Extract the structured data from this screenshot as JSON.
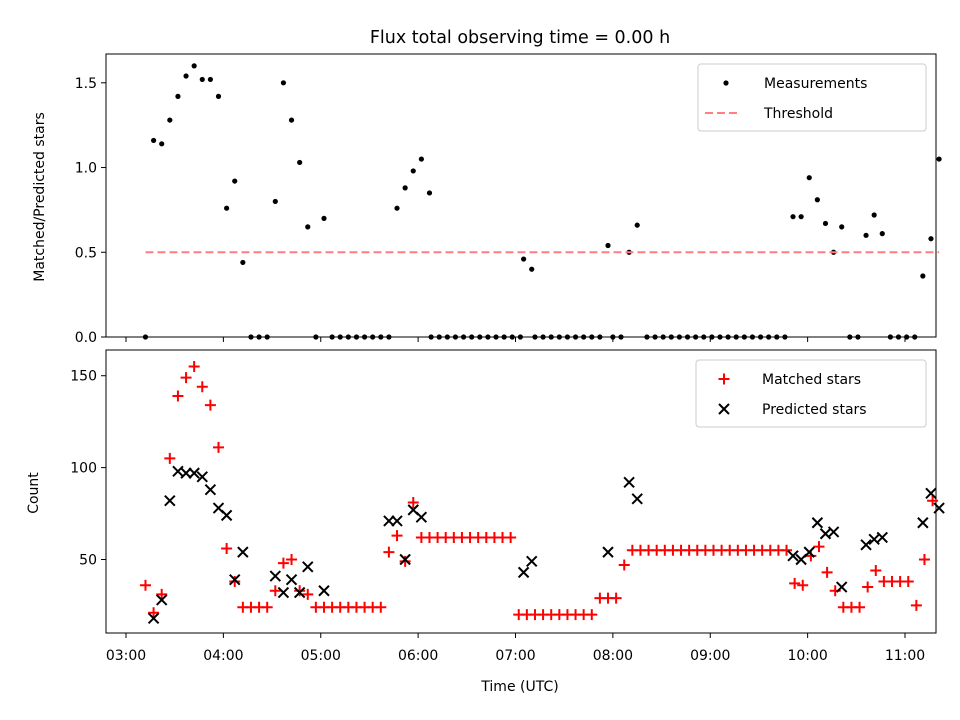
{
  "figure": {
    "title": "Flux total observing time = 0.00 h",
    "xlabel": "Time (UTC)",
    "x_ticks": [
      "03:00",
      "04:00",
      "05:00",
      "06:00",
      "07:00",
      "08:00",
      "09:00",
      "10:00",
      "11:00"
    ]
  },
  "colors": {
    "measurement": "#000000",
    "threshold": "#ff7f7f",
    "matched": "#ff0000",
    "predicted": "#000000"
  },
  "chart_data": [
    {
      "type": "scatter",
      "ylabel": "Matched/Predicted stars",
      "xlim": [
        "03:00",
        "11:00"
      ],
      "ylim": [
        0,
        1.67
      ],
      "y_ticks": [
        "0.0",
        "0.5",
        "1.0",
        "1.5"
      ],
      "y_tick_values": [
        0,
        0.5,
        1.0,
        1.5
      ],
      "legend": {
        "placement": "top-right",
        "entries": [
          "Measurements",
          "Threshold"
        ]
      },
      "series": [
        {
          "name": "Measurements",
          "marker": "dot",
          "points": [
            [
              "03:12",
              0
            ],
            [
              "03:17",
              1.16
            ],
            [
              "03:22",
              1.14
            ],
            [
              "03:27",
              1.28
            ],
            [
              "03:32",
              1.42
            ],
            [
              "03:37",
              1.54
            ],
            [
              "03:42",
              1.6
            ],
            [
              "03:47",
              1.52
            ],
            [
              "03:52",
              1.52
            ],
            [
              "03:57",
              1.42
            ],
            [
              "04:02",
              0.76
            ],
            [
              "04:07",
              0.92
            ],
            [
              "04:12",
              0.44
            ],
            [
              "04:17",
              0
            ],
            [
              "04:22",
              0
            ],
            [
              "04:27",
              0
            ],
            [
              "04:32",
              0.8
            ],
            [
              "04:37",
              1.5
            ],
            [
              "04:42",
              1.28
            ],
            [
              "04:47",
              1.03
            ],
            [
              "04:52",
              0.65
            ],
            [
              "04:57",
              0
            ],
            [
              "05:02",
              0.7
            ],
            [
              "05:07",
              0
            ],
            [
              "05:12",
              0
            ],
            [
              "05:17",
              0
            ],
            [
              "05:22",
              0
            ],
            [
              "05:27",
              0
            ],
            [
              "05:32",
              0
            ],
            [
              "05:37",
              0
            ],
            [
              "05:42",
              0
            ],
            [
              "05:47",
              0.76
            ],
            [
              "05:52",
              0.88
            ],
            [
              "05:57",
              0.98
            ],
            [
              "06:02",
              1.05
            ],
            [
              "06:07",
              0.85
            ],
            [
              "06:08",
              0
            ],
            [
              "06:13",
              0
            ],
            [
              "06:18",
              0
            ],
            [
              "06:23",
              0
            ],
            [
              "06:28",
              0
            ],
            [
              "06:33",
              0
            ],
            [
              "06:38",
              0
            ],
            [
              "06:43",
              0
            ],
            [
              "06:48",
              0
            ],
            [
              "06:53",
              0
            ],
            [
              "06:58",
              0
            ],
            [
              "07:03",
              0
            ],
            [
              "07:05",
              0.46
            ],
            [
              "07:10",
              0.4
            ],
            [
              "07:12",
              0
            ],
            [
              "07:17",
              0
            ],
            [
              "07:22",
              0
            ],
            [
              "07:27",
              0
            ],
            [
              "07:32",
              0
            ],
            [
              "07:37",
              0
            ],
            [
              "07:42",
              0
            ],
            [
              "07:47",
              0
            ],
            [
              "07:52",
              0
            ],
            [
              "07:57",
              0.54
            ],
            [
              "08:00",
              0
            ],
            [
              "08:05",
              0
            ],
            [
              "08:10",
              0.5
            ],
            [
              "08:15",
              0.66
            ],
            [
              "08:21",
              0
            ],
            [
              "08:26",
              0
            ],
            [
              "08:31",
              0
            ],
            [
              "08:36",
              0
            ],
            [
              "08:41",
              0
            ],
            [
              "08:46",
              0
            ],
            [
              "08:51",
              0
            ],
            [
              "08:56",
              0
            ],
            [
              "09:01",
              0
            ],
            [
              "09:06",
              0
            ],
            [
              "09:11",
              0
            ],
            [
              "09:16",
              0
            ],
            [
              "09:21",
              0
            ],
            [
              "09:26",
              0
            ],
            [
              "09:31",
              0
            ],
            [
              "09:36",
              0
            ],
            [
              "09:41",
              0
            ],
            [
              "09:46",
              0
            ],
            [
              "09:51",
              0.71
            ],
            [
              "09:56",
              0.71
            ],
            [
              "10:01",
              0.94
            ],
            [
              "10:06",
              0.81
            ],
            [
              "10:11",
              0.67
            ],
            [
              "10:16",
              0.5
            ],
            [
              "10:21",
              0.65
            ],
            [
              "10:26",
              0
            ],
            [
              "10:31",
              0
            ],
            [
              "10:36",
              0.6
            ],
            [
              "10:41",
              0.72
            ],
            [
              "10:46",
              0.61
            ],
            [
              "10:51",
              0
            ],
            [
              "10:56",
              0
            ],
            [
              "11:01",
              0
            ],
            [
              "11:06",
              0
            ],
            [
              "11:11",
              0.36
            ],
            [
              "11:16",
              0.58
            ],
            [
              "11:21",
              1.05
            ]
          ]
        },
        {
          "name": "Threshold",
          "style": "dashed",
          "points": [
            [
              "03:12",
              0.5
            ],
            [
              "11:21",
              0.5
            ]
          ]
        }
      ]
    },
    {
      "type": "scatter",
      "ylabel": "Count",
      "xlim": [
        "03:00",
        "11:00"
      ],
      "ylim": [
        10,
        164
      ],
      "y_ticks": [
        "50",
        "100",
        "150"
      ],
      "y_tick_values": [
        50,
        100,
        150
      ],
      "legend": {
        "placement": "top-right",
        "entries": [
          "Matched stars",
          "Predicted stars"
        ]
      },
      "series": [
        {
          "name": "Matched stars",
          "marker": "plus",
          "points": [
            [
              "03:12",
              36
            ],
            [
              "03:17",
              21
            ],
            [
              "03:22",
              31
            ],
            [
              "03:27",
              105
            ],
            [
              "03:32",
              139
            ],
            [
              "03:37",
              149
            ],
            [
              "03:42",
              155
            ],
            [
              "03:47",
              144
            ],
            [
              "03:52",
              134
            ],
            [
              "03:57",
              111
            ],
            [
              "04:02",
              56
            ],
            [
              "04:07",
              38
            ],
            [
              "04:12",
              24
            ],
            [
              "04:17",
              24
            ],
            [
              "04:22",
              24
            ],
            [
              "04:27",
              24
            ],
            [
              "04:32",
              33
            ],
            [
              "04:37",
              48
            ],
            [
              "04:42",
              50
            ],
            [
              "04:47",
              33
            ],
            [
              "04:52",
              31
            ],
            [
              "04:57",
              24
            ],
            [
              "05:02",
              24
            ],
            [
              "05:07",
              24
            ],
            [
              "05:12",
              24
            ],
            [
              "05:17",
              24
            ],
            [
              "05:22",
              24
            ],
            [
              "05:27",
              24
            ],
            [
              "05:32",
              24
            ],
            [
              "05:37",
              24
            ],
            [
              "05:42",
              54
            ],
            [
              "05:47",
              63
            ],
            [
              "05:52",
              49
            ],
            [
              "05:57",
              81
            ],
            [
              "06:02",
              62
            ],
            [
              "06:07",
              62
            ],
            [
              "06:12",
              62
            ],
            [
              "06:17",
              62
            ],
            [
              "06:22",
              62
            ],
            [
              "06:27",
              62
            ],
            [
              "06:32",
              62
            ],
            [
              "06:37",
              62
            ],
            [
              "06:42",
              62
            ],
            [
              "06:47",
              62
            ],
            [
              "06:52",
              62
            ],
            [
              "06:57",
              62
            ],
            [
              "07:02",
              20
            ],
            [
              "07:07",
              20
            ],
            [
              "07:12",
              20
            ],
            [
              "07:17",
              20
            ],
            [
              "07:22",
              20
            ],
            [
              "07:27",
              20
            ],
            [
              "07:32",
              20
            ],
            [
              "07:37",
              20
            ],
            [
              "07:42",
              20
            ],
            [
              "07:47",
              20
            ],
            [
              "07:52",
              29
            ],
            [
              "07:57",
              29
            ],
            [
              "08:02",
              29
            ],
            [
              "08:07",
              47
            ],
            [
              "08:12",
              55
            ],
            [
              "08:17",
              55
            ],
            [
              "08:22",
              55
            ],
            [
              "08:27",
              55
            ],
            [
              "08:32",
              55
            ],
            [
              "08:37",
              55
            ],
            [
              "08:42",
              55
            ],
            [
              "08:47",
              55
            ],
            [
              "08:52",
              55
            ],
            [
              "08:57",
              55
            ],
            [
              "09:02",
              55
            ],
            [
              "09:07",
              55
            ],
            [
              "09:12",
              55
            ],
            [
              "09:17",
              55
            ],
            [
              "09:22",
              55
            ],
            [
              "09:27",
              55
            ],
            [
              "09:32",
              55
            ],
            [
              "09:37",
              55
            ],
            [
              "09:42",
              55
            ],
            [
              "09:47",
              55
            ],
            [
              "09:52",
              37
            ],
            [
              "09:57",
              36
            ],
            [
              "10:02",
              52
            ],
            [
              "10:07",
              57
            ],
            [
              "10:12",
              43
            ],
            [
              "10:17",
              33
            ],
            [
              "10:22",
              24
            ],
            [
              "10:27",
              24
            ],
            [
              "10:32",
              24
            ],
            [
              "10:37",
              35
            ],
            [
              "10:42",
              44
            ],
            [
              "10:47",
              38
            ],
            [
              "10:52",
              38
            ],
            [
              "10:57",
              38
            ],
            [
              "11:02",
              38
            ],
            [
              "11:07",
              25
            ],
            [
              "11:12",
              50
            ],
            [
              "11:17",
              82
            ]
          ]
        },
        {
          "name": "Predicted stars",
          "marker": "x",
          "points": [
            [
              "03:17",
              18
            ],
            [
              "03:22",
              28
            ],
            [
              "03:27",
              82
            ],
            [
              "03:32",
              98
            ],
            [
              "03:37",
              97
            ],
            [
              "03:42",
              97
            ],
            [
              "03:47",
              95
            ],
            [
              "03:52",
              88
            ],
            [
              "03:57",
              78
            ],
            [
              "04:02",
              74
            ],
            [
              "04:07",
              39
            ],
            [
              "04:12",
              54
            ],
            [
              "04:32",
              41
            ],
            [
              "04:37",
              32
            ],
            [
              "04:42",
              39
            ],
            [
              "04:47",
              32
            ],
            [
              "04:52",
              46
            ],
            [
              "05:02",
              33
            ],
            [
              "05:42",
              71
            ],
            [
              "05:47",
              71
            ],
            [
              "05:52",
              50
            ],
            [
              "05:57",
              77
            ],
            [
              "06:02",
              73
            ],
            [
              "07:05",
              43
            ],
            [
              "07:10",
              49
            ],
            [
              "07:57",
              54
            ],
            [
              "08:10",
              92
            ],
            [
              "08:15",
              83
            ],
            [
              "09:51",
              52
            ],
            [
              "09:56",
              50
            ],
            [
              "10:01",
              54
            ],
            [
              "10:06",
              70
            ],
            [
              "10:11",
              64
            ],
            [
              "10:16",
              65
            ],
            [
              "10:21",
              35
            ],
            [
              "10:36",
              58
            ],
            [
              "10:41",
              61
            ],
            [
              "10:46",
              62
            ],
            [
              "11:11",
              70
            ],
            [
              "11:16",
              86
            ],
            [
              "11:21",
              78
            ]
          ]
        }
      ]
    }
  ]
}
